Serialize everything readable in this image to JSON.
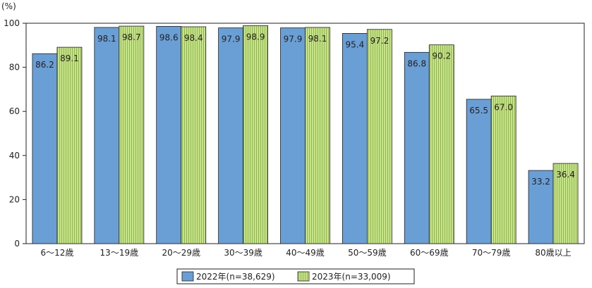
{
  "chart_data": {
    "type": "bar",
    "unit": "(%)",
    "categories": [
      "6～12歳",
      "13～19歳",
      "20～29歳",
      "30～39歳",
      "40～49歳",
      "50～59歳",
      "60～69歳",
      "70～79歳",
      "80歳以上"
    ],
    "series": [
      {
        "name": "2022年(n=38,629)",
        "color": "#6a9fd6",
        "values": [
          86.2,
          98.1,
          98.6,
          97.9,
          97.9,
          95.4,
          86.8,
          65.5,
          33.2
        ]
      },
      {
        "name": "2023年(n=33,009)",
        "color": "#c7e089",
        "values": [
          89.1,
          98.7,
          98.4,
          98.9,
          98.1,
          97.2,
          90.2,
          67.0,
          36.4
        ]
      }
    ],
    "ylim": [
      0,
      100
    ],
    "yticks": [
      0,
      20,
      40,
      60,
      80,
      100
    ],
    "grid": false,
    "legend_position": "bottom"
  }
}
